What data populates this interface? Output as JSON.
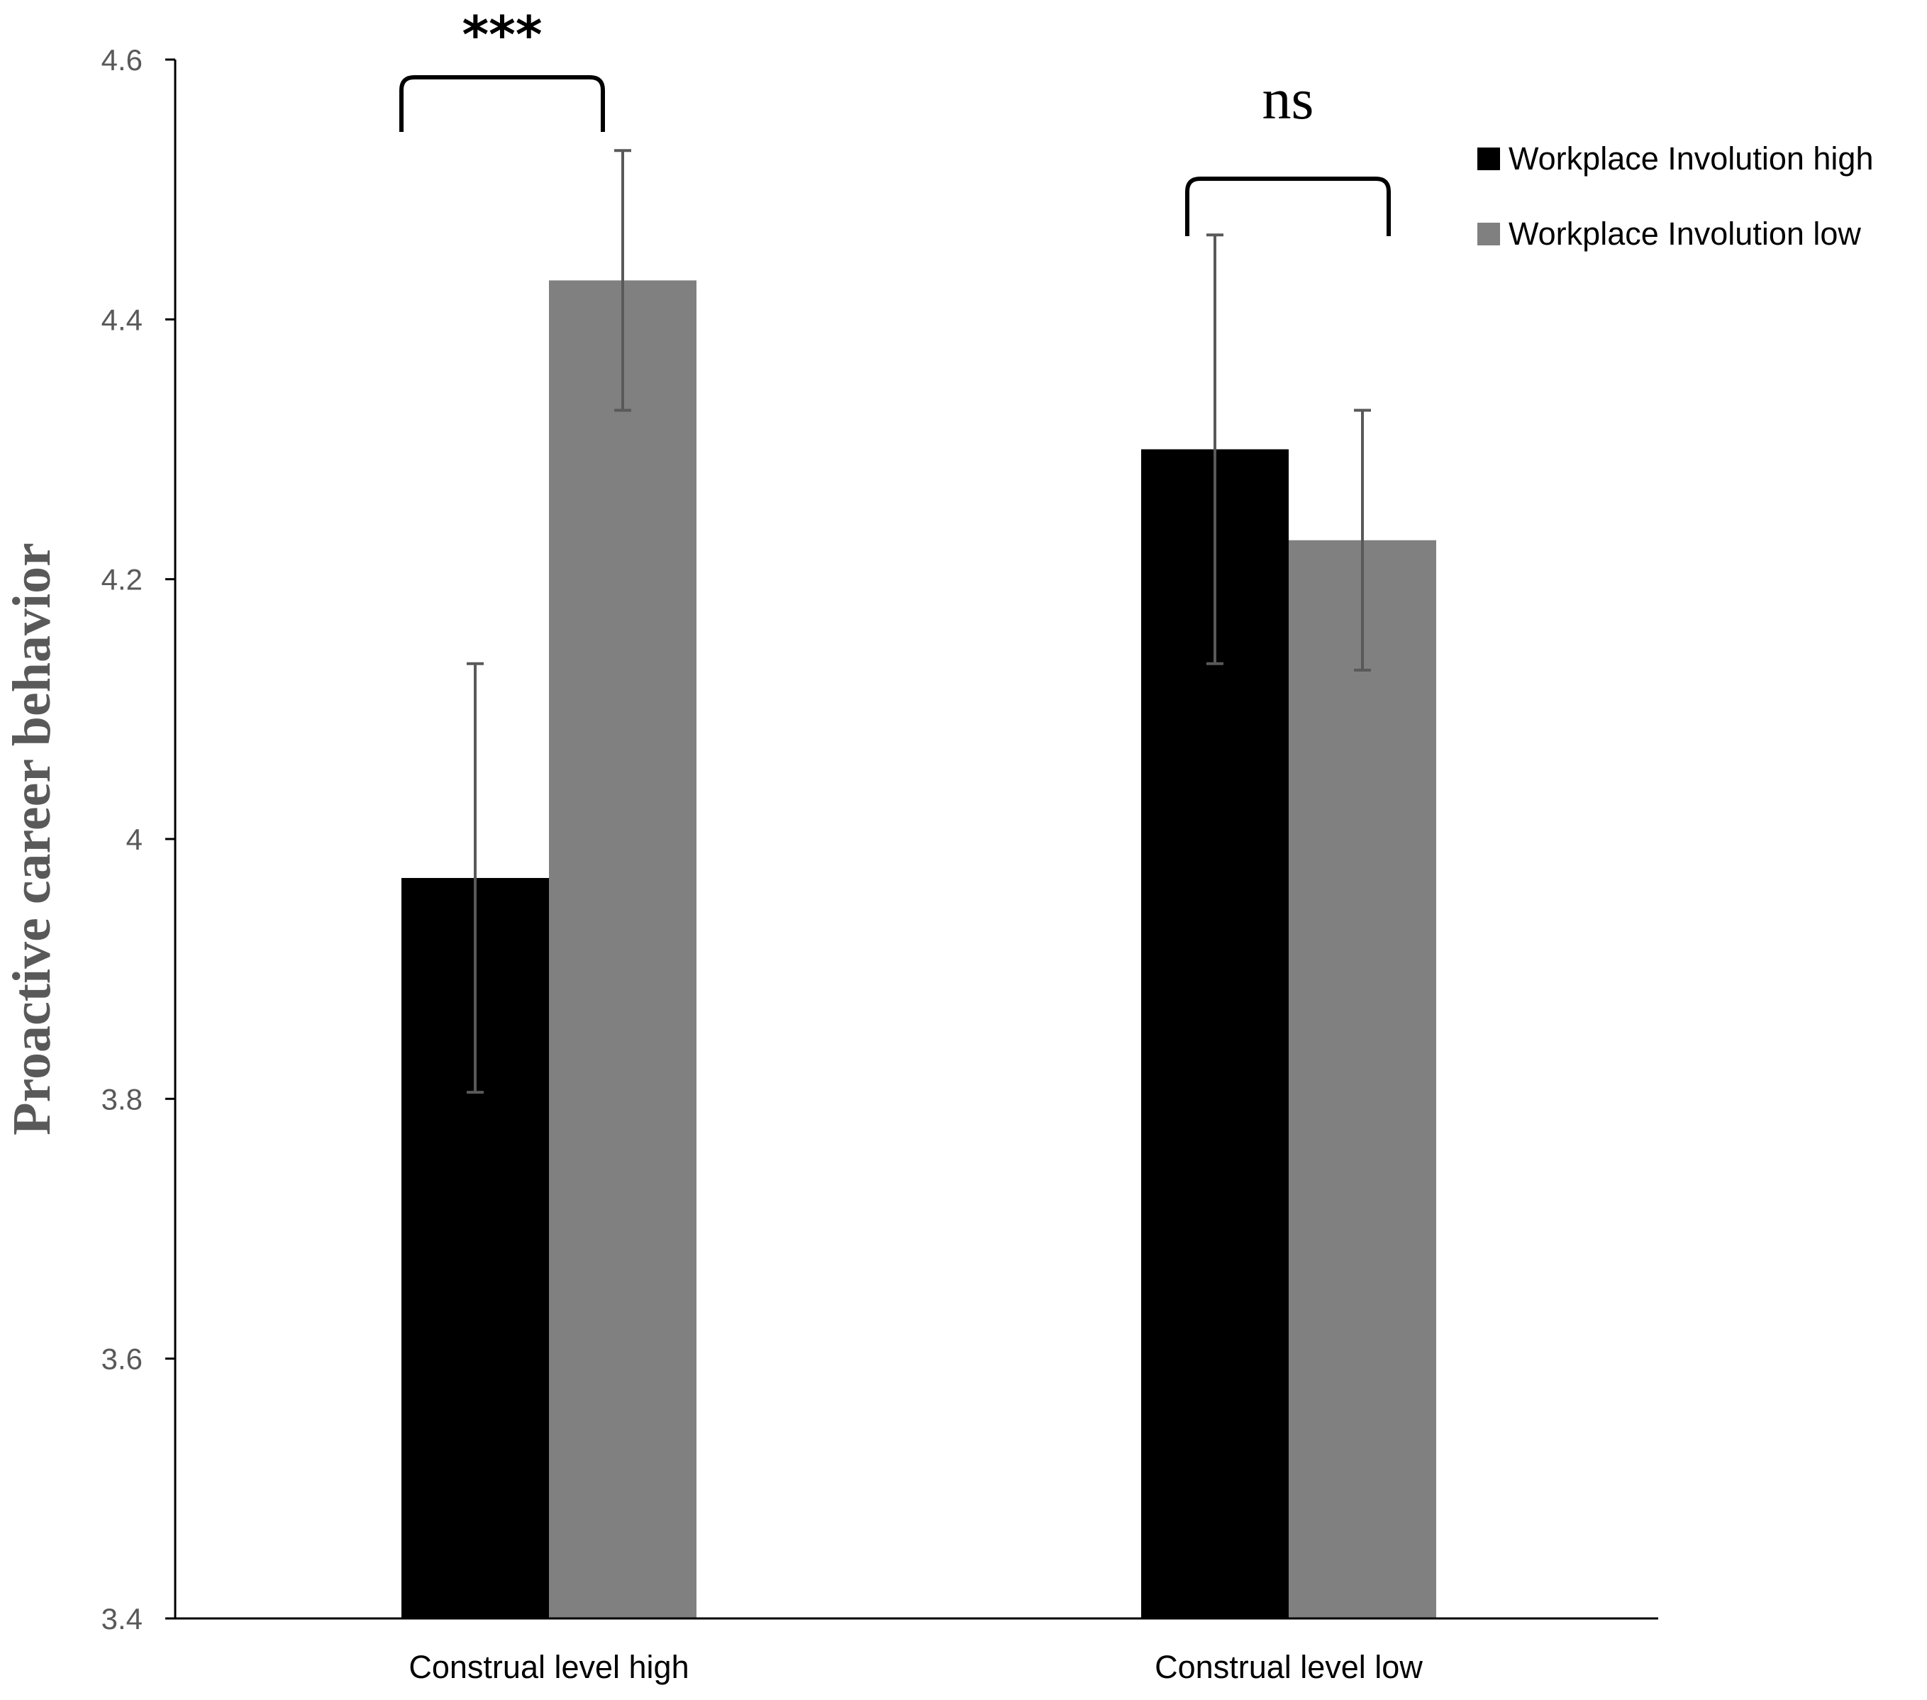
{
  "chart_data": {
    "type": "bar",
    "title": "",
    "xlabel": "",
    "ylabel": "Proactive career behavior",
    "ylim": [
      3.4,
      4.6
    ],
    "yticks": [
      "3.4",
      "3.6",
      "3.8",
      "4",
      "4.2",
      "4.4",
      "4.6"
    ],
    "grid": false,
    "categories": [
      "Construal level high",
      "Construal level low"
    ],
    "series": [
      {
        "name": "Workplace Involution high",
        "color": "#000000",
        "values": [
          3.97,
          4.3
        ],
        "error_low": [
          3.805,
          4.135
        ],
        "error_high": [
          4.135,
          4.465
        ]
      },
      {
        "name": "Workplace Involution low",
        "color": "#808080",
        "values": [
          4.43,
          4.23
        ],
        "error_low": [
          4.33,
          4.13
        ],
        "error_high": [
          4.53,
          4.33
        ]
      }
    ],
    "legend_position": "top-right",
    "annotations": [
      {
        "text": "***",
        "category": "Construal level high"
      },
      {
        "text": "ns",
        "category": "Construal level low"
      }
    ],
    "error_bar_color": "#595959",
    "axis_color": "#000000"
  }
}
